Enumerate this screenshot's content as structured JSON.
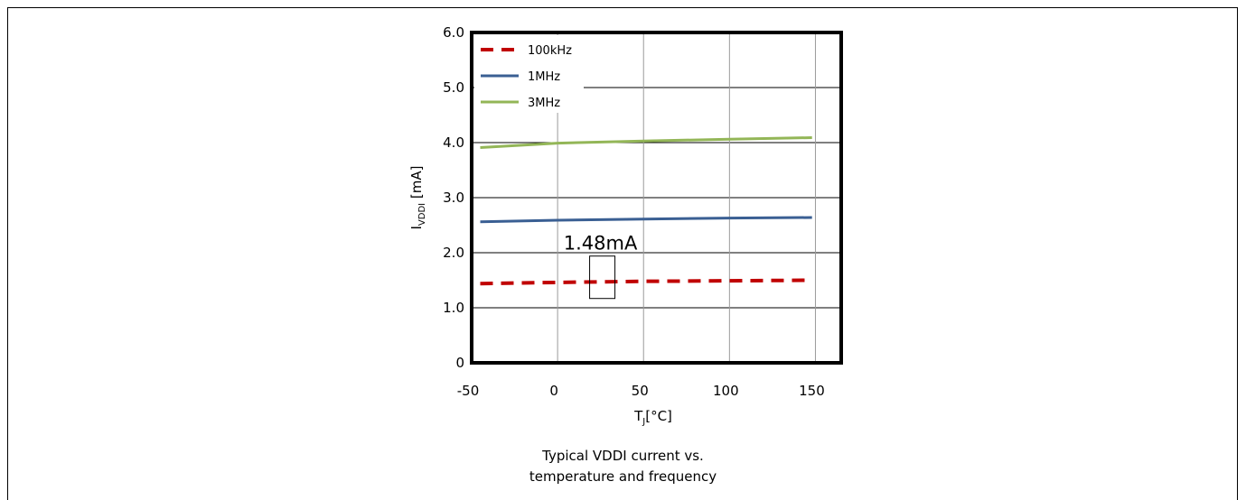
{
  "chart_data": {
    "type": "line",
    "x": [
      -45,
      0,
      50,
      100,
      150
    ],
    "xticks": [
      "-50",
      "0",
      "50",
      "100",
      "150"
    ],
    "yticks": [
      "0",
      "1.0",
      "2.0",
      "3.0",
      "4.0",
      "5.0",
      "6.0"
    ],
    "xlim": [
      -50,
      165
    ],
    "ylim": [
      0,
      6
    ],
    "xlabel_main": "T",
    "xlabel_sub": "J",
    "xlabel_rest": "[°C]",
    "ylabel_main": "I",
    "ylabel_sub": "VDDI",
    "ylabel_rest": " [mA]",
    "grid": true,
    "legend_position": "top-left",
    "series": [
      {
        "name": "100kHz",
        "color": "#c00000",
        "dashed": true,
        "x": [
          -45,
          0,
          50,
          100,
          148
        ],
        "values": [
          1.44,
          1.46,
          1.48,
          1.49,
          1.5
        ]
      },
      {
        "name": "1MHz",
        "color": "#3a5f93",
        "dashed": false,
        "x": [
          -45,
          0,
          50,
          100,
          148
        ],
        "values": [
          2.56,
          2.59,
          2.61,
          2.63,
          2.64
        ]
      },
      {
        "name": "3MHz",
        "color": "#93b657",
        "dashed": false,
        "x": [
          -45,
          0,
          50,
          100,
          148
        ],
        "values": [
          3.91,
          3.99,
          4.03,
          4.06,
          4.09
        ]
      }
    ],
    "annotation": {
      "text": "1.48mA",
      "x": 26,
      "y": 1.48
    }
  },
  "caption": {
    "line1": "Typical VDDI current vs.",
    "line2": "temperature and frequency"
  }
}
